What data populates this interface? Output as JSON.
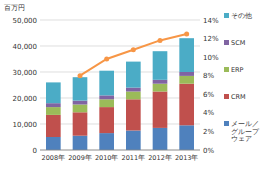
{
  "chart_data": {
    "type": "bar",
    "stacked": true,
    "grid": true,
    "legend": "right",
    "y_label": "百万円",
    "categories": [
      "2008年",
      "2009年",
      "2010年",
      "2011年",
      "2012年",
      "2013年"
    ],
    "ylim": [
      0,
      50000
    ],
    "yticks": [
      0,
      {
        "value": 10000,
        "label": "10,000"
      },
      {
        "value": 20000,
        "label": "20,000"
      },
      {
        "value": 30000,
        "label": "30,000"
      },
      {
        "value": 40000,
        "label": "40,000"
      },
      {
        "value": 50000,
        "label": "50,000"
      }
    ],
    "y2lim": [
      0,
      14
    ],
    "y2ticks": [
      {
        "value": 0,
        "label": "0%"
      },
      {
        "value": 2,
        "label": "2%"
      },
      {
        "value": 4,
        "label": "4%"
      },
      {
        "value": 6,
        "label": "6%"
      },
      {
        "value": 8,
        "label": "8%"
      },
      {
        "value": 10,
        "label": "10%"
      },
      {
        "value": 12,
        "label": "12%"
      },
      {
        "value": 14,
        "label": "14%"
      }
    ],
    "series": [
      {
        "name": "メール／グループウェア",
        "color": "#4f81bd",
        "values": [
          5000,
          5500,
          6500,
          7500,
          8500,
          9500
        ]
      },
      {
        "name": "CRM",
        "color": "#c0504d",
        "values": [
          8500,
          9000,
          10000,
          12000,
          14000,
          16000
        ]
      },
      {
        "name": "ERP",
        "color": "#9bbb59",
        "values": [
          3000,
          3000,
          3000,
          3000,
          3000,
          3000
        ]
      },
      {
        "name": "SCM",
        "color": "#8064a2",
        "values": [
          1500,
          1500,
          1500,
          1500,
          1500,
          1500
        ]
      },
      {
        "name": "その他",
        "color": "#4bacc6",
        "values": [
          8000,
          9000,
          9500,
          10000,
          11000,
          13000
        ]
      },
      {
        "type": "line",
        "axis": "y2",
        "color": "#f79646",
        "marker": "circle",
        "line_style": "solid",
        "values": [
          null,
          8,
          9.8,
          10.8,
          11.8,
          12.5
        ]
      }
    ]
  }
}
